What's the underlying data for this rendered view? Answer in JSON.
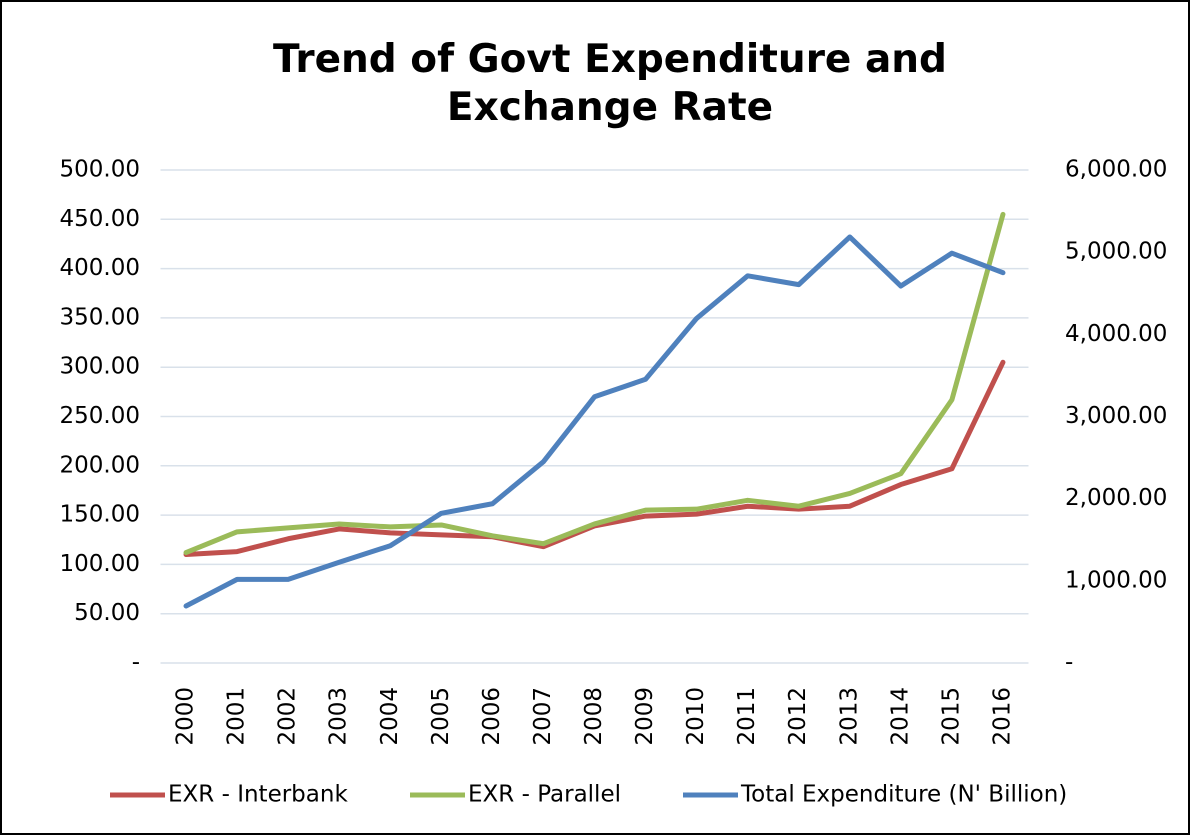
{
  "chart_data": {
    "type": "line",
    "title": "Trend of Govt Expenditure and Exchange Rate",
    "categories": [
      "2000",
      "2001",
      "2002",
      "2003",
      "2004",
      "2005",
      "2006",
      "2007",
      "2008",
      "2009",
      "2010",
      "2011",
      "2012",
      "2013",
      "2014",
      "2015",
      "2016"
    ],
    "series": [
      {
        "name": "EXR - Interbank",
        "color": "#c0504d",
        "values": [
          110,
          113,
          126,
          136,
          132,
          130,
          128,
          118,
          139,
          149,
          151,
          159,
          156,
          159,
          181,
          197,
          305
        ]
      },
      {
        "name": "EXR - Parallel",
        "color": "#9bbb59",
        "values": [
          112,
          133,
          137,
          141,
          138,
          140,
          129,
          121,
          141,
          155,
          156,
          165,
          159,
          172,
          192,
          267,
          455
        ]
      },
      {
        "name": "Total Expenditure (N' Billion)",
        "color": "#4f81bd",
        "axis": "y2",
        "values": [
          694,
          1018,
          1018,
          1226,
          1427,
          1822,
          1938,
          2450,
          3240,
          3453,
          4194,
          4712,
          4605,
          5185,
          4588,
          4988,
          4750
        ]
      }
    ],
    "ylim": [
      0,
      500
    ],
    "yticks": [
      {
        "value": 0,
        "label": "-"
      },
      {
        "value": 50,
        "label": "50.00"
      },
      {
        "value": 100,
        "label": "100.00"
      },
      {
        "value": 150,
        "label": "150.00"
      },
      {
        "value": 200,
        "label": "200.00"
      },
      {
        "value": 250,
        "label": "250.00"
      },
      {
        "value": 300,
        "label": "300.00"
      },
      {
        "value": 350,
        "label": "350.00"
      },
      {
        "value": 400,
        "label": "400.00"
      },
      {
        "value": 450,
        "label": "450.00"
      },
      {
        "value": 500,
        "label": "500.00"
      }
    ],
    "y2lim": [
      0,
      6000
    ],
    "y2ticks": [
      {
        "value": 0,
        "label": "-"
      },
      {
        "value": 1000,
        "label": "1,000.00"
      },
      {
        "value": 2000,
        "label": "2,000.00"
      },
      {
        "value": 3000,
        "label": "3,000.00"
      },
      {
        "value": 4000,
        "label": "4,000.00"
      },
      {
        "value": 5000,
        "label": "5,000.00"
      },
      {
        "value": 6000,
        "label": "6,000.00"
      }
    ],
    "grid": true,
    "legend": "bottom"
  }
}
